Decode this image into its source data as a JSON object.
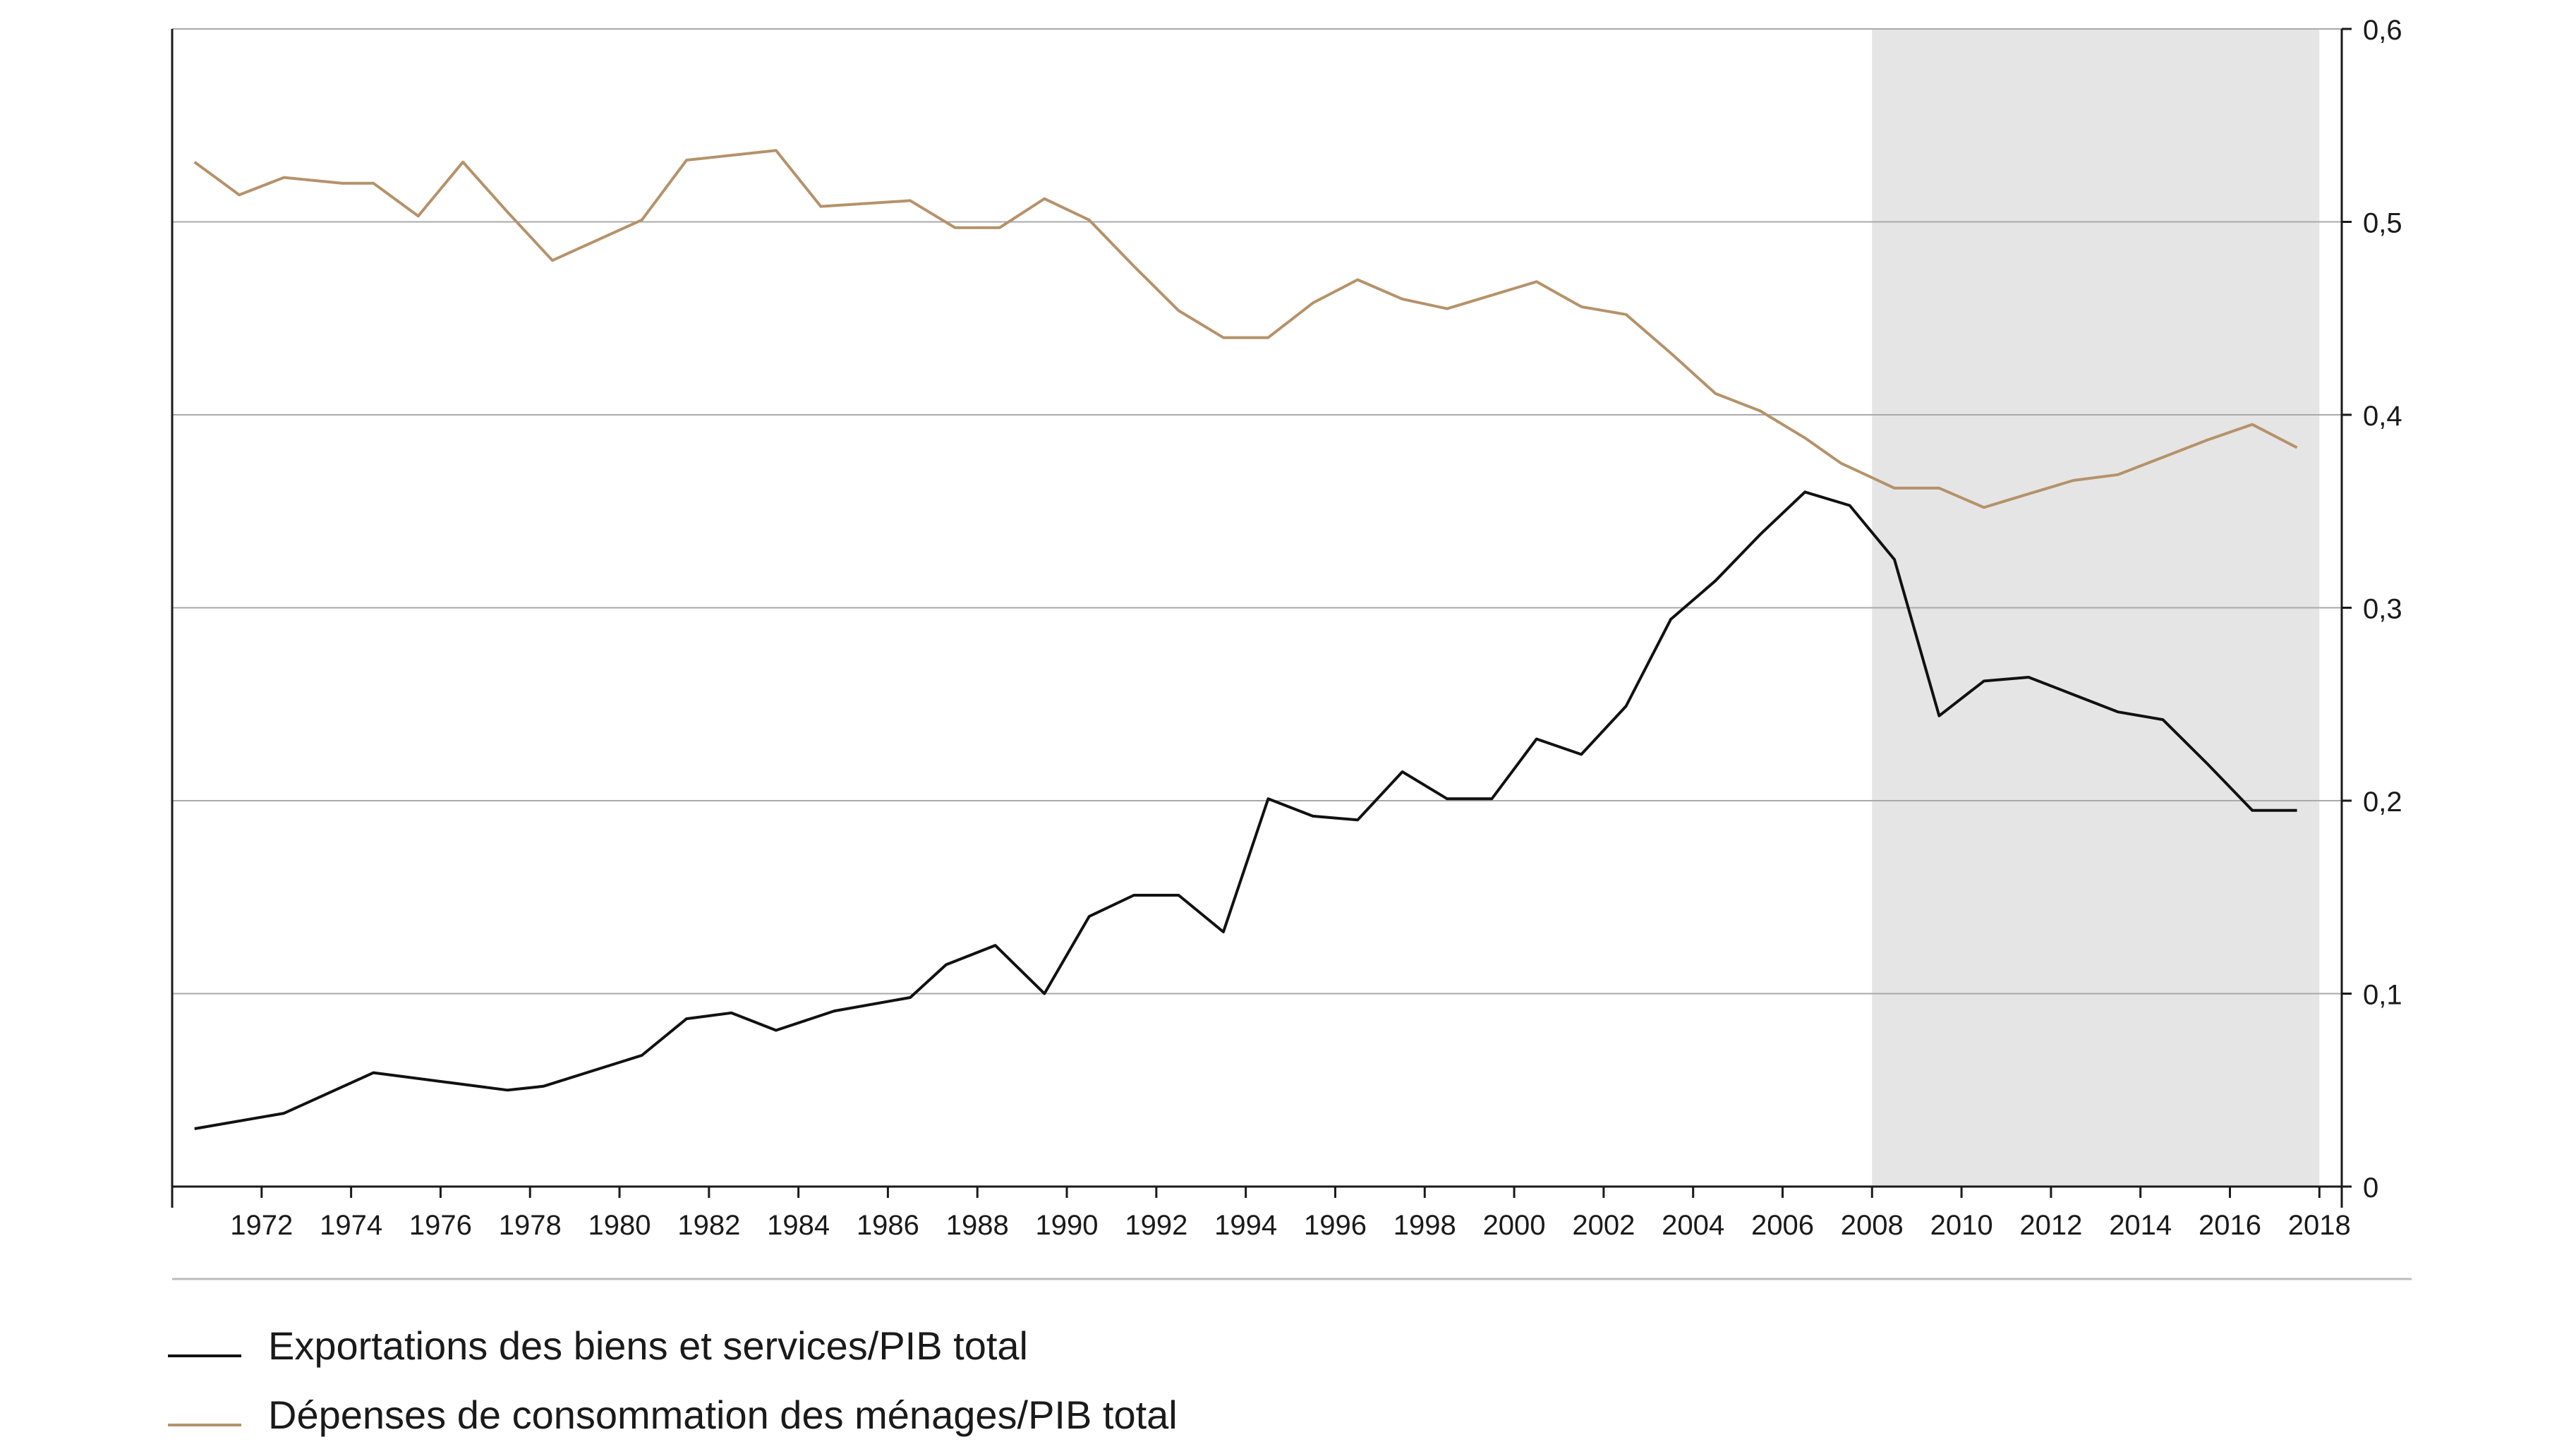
{
  "chart_data": {
    "type": "line",
    "title": "",
    "xlabel": "",
    "ylabel": "",
    "xlim": [
      1970,
      2018.5
    ],
    "ylim": [
      0,
      0.6
    ],
    "x_ticks": [
      "1972",
      "1974",
      "1976",
      "1978",
      "1980",
      "1982",
      "1984",
      "1986",
      "1988",
      "1990",
      "1992",
      "1994",
      "1996",
      "1998",
      "2000",
      "2002",
      "2004",
      "2006",
      "2008",
      "2010",
      "2012",
      "2014",
      "2016",
      "2018"
    ],
    "y_ticks": [
      "0",
      "0,1",
      "0,2",
      "0,3",
      "0,4",
      "0,5",
      "0,6"
    ],
    "y_axis_side": "right",
    "grid": "horizontal",
    "shaded_region": {
      "x_start": 2008,
      "x_end": 2018,
      "color": "#e5e5e5"
    },
    "legend_position": "bottom-left",
    "series": [
      {
        "name": "Exportations des biens et services/PIB total",
        "color": "#111111",
        "points": [
          [
            1970.5,
            0.03
          ],
          [
            1972.5,
            0.038
          ],
          [
            1974.5,
            0.059
          ],
          [
            1977.5,
            0.05
          ],
          [
            1978.3,
            0.052
          ],
          [
            1980.5,
            0.068
          ],
          [
            1981.5,
            0.087
          ],
          [
            1982.5,
            0.09
          ],
          [
            1983.5,
            0.081
          ],
          [
            1984.8,
            0.091
          ],
          [
            1986.5,
            0.098
          ],
          [
            1987.3,
            0.115
          ],
          [
            1988.4,
            0.125
          ],
          [
            1989.5,
            0.1
          ],
          [
            1990.5,
            0.14
          ],
          [
            1991.5,
            0.151
          ],
          [
            1992.5,
            0.151
          ],
          [
            1993.5,
            0.132
          ],
          [
            1994.5,
            0.201
          ],
          [
            1995.5,
            0.192
          ],
          [
            1996.5,
            0.19
          ],
          [
            1997.5,
            0.215
          ],
          [
            1998.5,
            0.201
          ],
          [
            1999.5,
            0.201
          ],
          [
            2000.5,
            0.232
          ],
          [
            2001.5,
            0.224
          ],
          [
            2002.5,
            0.249
          ],
          [
            2003.5,
            0.294
          ],
          [
            2004.5,
            0.314
          ],
          [
            2005.5,
            0.338
          ],
          [
            2006.5,
            0.36
          ],
          [
            2007.5,
            0.353
          ],
          [
            2008.5,
            0.325
          ],
          [
            2009.5,
            0.244
          ],
          [
            2010.5,
            0.262
          ],
          [
            2011.5,
            0.264
          ],
          [
            2012.5,
            0.255
          ],
          [
            2013.5,
            0.246
          ],
          [
            2014.5,
            0.242
          ],
          [
            2015.5,
            0.219
          ],
          [
            2016.5,
            0.195
          ],
          [
            2017.5,
            0.195
          ]
        ]
      },
      {
        "name": "Dépenses de consommation des ménages/PIB total",
        "color": "#b5926a",
        "points": [
          [
            1970.5,
            0.531
          ],
          [
            1971.5,
            0.514
          ],
          [
            1972.5,
            0.523
          ],
          [
            1973.8,
            0.52
          ],
          [
            1974.5,
            0.52
          ],
          [
            1975.5,
            0.503
          ],
          [
            1976.5,
            0.531
          ],
          [
            1977.5,
            0.505
          ],
          [
            1978.5,
            0.48
          ],
          [
            1980.5,
            0.501
          ],
          [
            1981.5,
            0.532
          ],
          [
            1983.5,
            0.537
          ],
          [
            1984.5,
            0.508
          ],
          [
            1986.5,
            0.511
          ],
          [
            1987.5,
            0.497
          ],
          [
            1988.5,
            0.497
          ],
          [
            1989.5,
            0.512
          ],
          [
            1990.5,
            0.501
          ],
          [
            1991.5,
            0.477
          ],
          [
            1992.5,
            0.454
          ],
          [
            1993.5,
            0.44
          ],
          [
            1994.5,
            0.44
          ],
          [
            1995.5,
            0.458
          ],
          [
            1996.5,
            0.47
          ],
          [
            1997.5,
            0.46
          ],
          [
            1998.5,
            0.455
          ],
          [
            1999.5,
            0.462
          ],
          [
            2000.5,
            0.469
          ],
          [
            2001.5,
            0.456
          ],
          [
            2002.5,
            0.452
          ],
          [
            2003.5,
            0.432
          ],
          [
            2004.5,
            0.411
          ],
          [
            2005.5,
            0.402
          ],
          [
            2006.5,
            0.388
          ],
          [
            2007.3,
            0.375
          ],
          [
            2008.5,
            0.362
          ],
          [
            2009.5,
            0.362
          ],
          [
            2010.5,
            0.352
          ],
          [
            2011.5,
            0.359
          ],
          [
            2012.5,
            0.366
          ],
          [
            2013.5,
            0.369
          ],
          [
            2014.5,
            0.378
          ],
          [
            2015.5,
            0.387
          ],
          [
            2016.5,
            0.395
          ],
          [
            2017.5,
            0.383
          ]
        ]
      }
    ]
  }
}
